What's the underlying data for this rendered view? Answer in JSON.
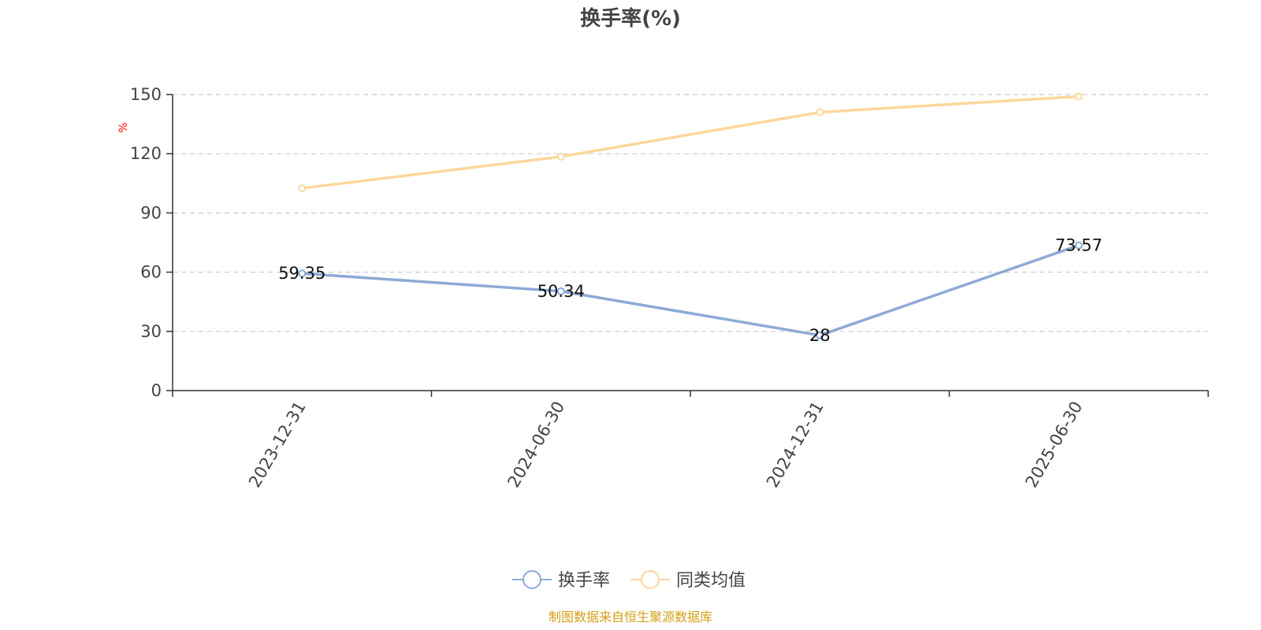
{
  "chart_data": {
    "type": "line",
    "title": "换手率(%)",
    "ylabel": "%",
    "ylim": [
      0,
      150
    ],
    "yticks": [
      0,
      30,
      60,
      90,
      120,
      150
    ],
    "grid": true,
    "legend_position": "bottom-center",
    "categories": [
      "2023-12-31",
      "2024-06-30",
      "2024-12-31",
      "2025-06-30"
    ],
    "series": [
      {
        "name": "换手率",
        "values": [
          59.35,
          50.34,
          28,
          73.57
        ],
        "labels": [
          "59.35",
          "50.34",
          "28",
          "73.57"
        ],
        "color": "#8eaad6"
      },
      {
        "name": "同类均值",
        "values": [
          102.5,
          118.5,
          141.0,
          149.0
        ],
        "color": "#fcd79b"
      }
    ],
    "source": "制图数据来自恒生聚源数据库"
  },
  "colors": {
    "axis": "#333333",
    "grid": "#cccccc",
    "unit": "#ff0000",
    "source": "#d4a017"
  }
}
